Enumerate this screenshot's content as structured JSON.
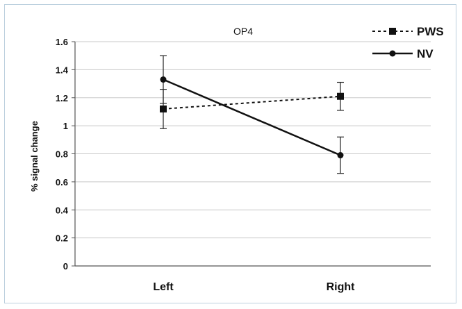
{
  "chart_data": {
    "type": "line",
    "title": "OP4",
    "xlabel": "",
    "ylabel": "% signal change",
    "categories": [
      "Left",
      "Right"
    ],
    "ylim": [
      0,
      1.6
    ],
    "yticks": [
      "0",
      "0.2",
      "0.4",
      "0.6",
      "0.8",
      "1",
      "1.2",
      "1.4",
      "1.6"
    ],
    "grid": true,
    "legend_position": "top-right",
    "series": [
      {
        "name": "PWS",
        "values": [
          1.12,
          1.21
        ],
        "error": [
          0.14,
          0.1
        ],
        "line_style": "dashed",
        "marker": "square",
        "color": "#111111"
      },
      {
        "name": "NV",
        "values": [
          1.33,
          0.79
        ],
        "error": [
          0.17,
          0.13
        ],
        "line_style": "solid",
        "marker": "circle",
        "color": "#111111"
      }
    ]
  }
}
